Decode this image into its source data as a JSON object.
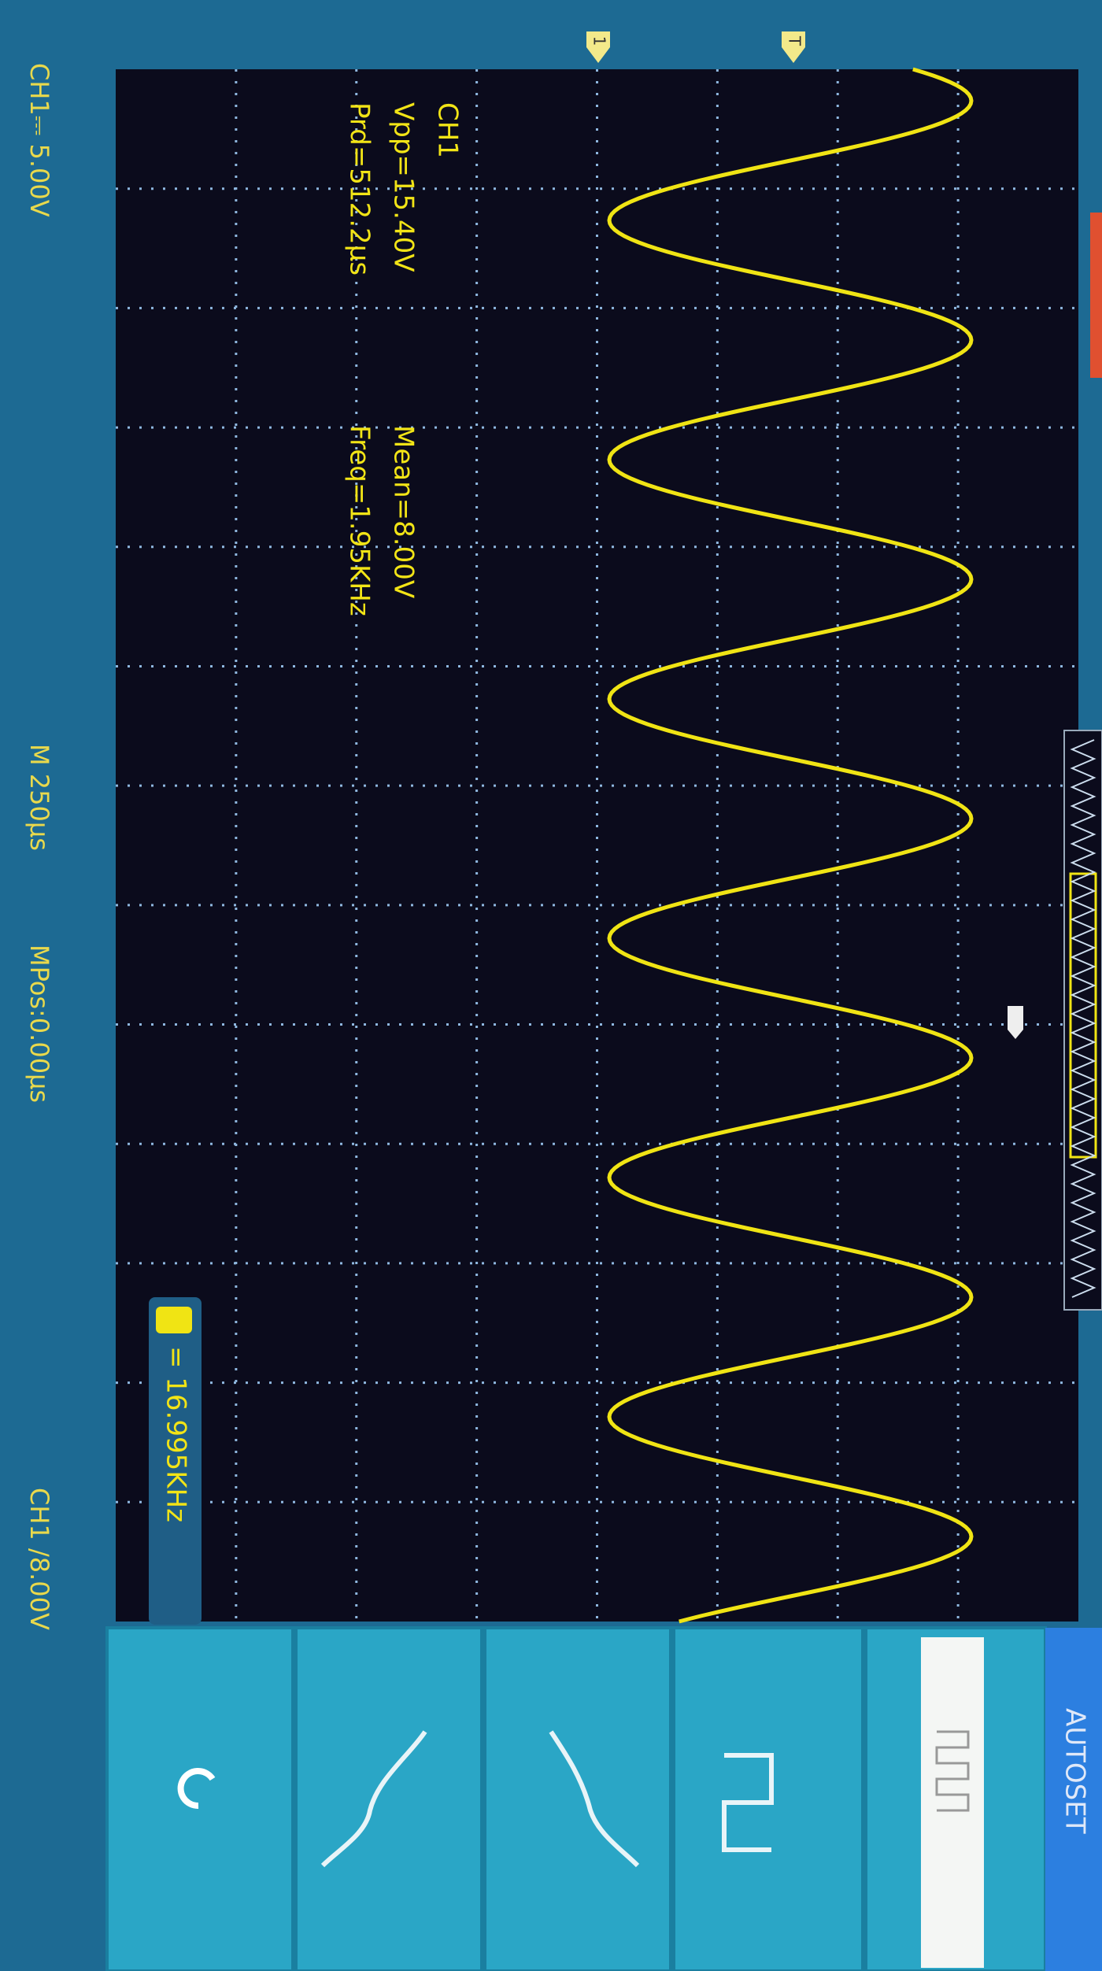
{
  "measurements": {
    "channel": "CH1",
    "vpp": "Vpp=15.40V",
    "prd": "Prd=512.2µs",
    "mean": "Mean=8.00V",
    "freq": "Freq=1.95KHz"
  },
  "status": {
    "ch1_scale": "CH1⎓ 5.00V",
    "timebase": "M 250µs",
    "mpos": "MPos:0.00µs",
    "trigger": "CH1 /8.00V"
  },
  "trigger_freq": "= 16.995KHz",
  "markers": {
    "channel": "1",
    "trigger": "T"
  },
  "menu": {
    "autoset": "AUTOSET"
  }
}
